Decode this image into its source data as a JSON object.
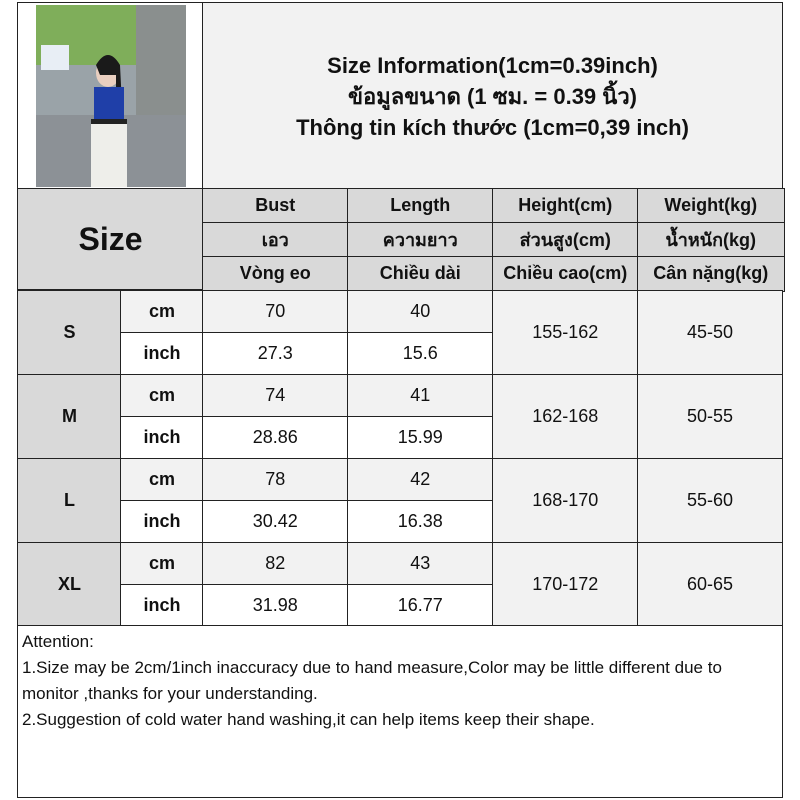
{
  "title": {
    "line1": "Size Information(1cm=0.39inch)",
    "line2": "ข้อมูลขนาด (1 ซม. = 0.39 นิ้ว)",
    "line3": "Thông tin kích thước (1cm=0,39 inch)"
  },
  "photo": {
    "alt": "model-photo"
  },
  "size_label": "Size",
  "columns": [
    {
      "en": "Bust",
      "th": "เอว",
      "vi": "Vòng eo"
    },
    {
      "en": "Length",
      "th": "ความยาว",
      "vi": "Chiều dài"
    },
    {
      "en": "Height(cm)",
      "th": "ส่วนสูง(cm)",
      "vi": "Chiều cao(cm)"
    },
    {
      "en": "Weight(kg)",
      "th": "น้ำหนัก(kg)",
      "vi": "Cân nặng(kg)"
    }
  ],
  "unit_cm": "cm",
  "unit_inch": "inch",
  "rows": [
    {
      "size": "S",
      "bust_cm": "70",
      "length_cm": "40",
      "bust_inch": "27.3",
      "length_inch": "15.6",
      "height": "155-162",
      "weight": "45-50"
    },
    {
      "size": "M",
      "bust_cm": "74",
      "length_cm": "41",
      "bust_inch": "28.86",
      "length_inch": "15.99",
      "height": "162-168",
      "weight": "50-55"
    },
    {
      "size": "L",
      "bust_cm": "78",
      "length_cm": "42",
      "bust_inch": "30.42",
      "length_inch": "16.38",
      "height": "168-170",
      "weight": "55-60"
    },
    {
      "size": "XL",
      "bust_cm": "82",
      "length_cm": "43",
      "bust_inch": "31.98",
      "length_inch": "16.77",
      "height": "170-172",
      "weight": "60-65"
    }
  ],
  "attention": {
    "heading": "Attention:",
    "note1": "1.Size may be 2cm/1inch inaccuracy due to hand measure,Color may be little different due to monitor ,thanks for your understanding.",
    "note2": "2.Suggestion of cold water hand washing,it can help items keep their shape."
  }
}
